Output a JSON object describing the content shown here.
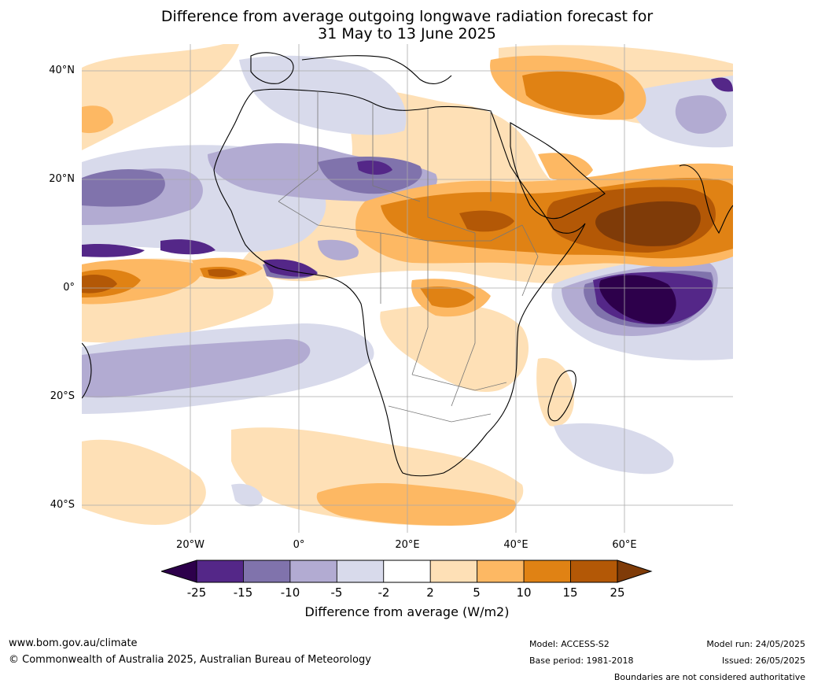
{
  "title_line1": "Difference from average outgoing longwave radiation forecast for",
  "title_line2": "31 May to 13 June 2025",
  "lat_labels": [
    "40°N",
    "20°N",
    "0°",
    "20°S",
    "40°S"
  ],
  "lon_labels": [
    "20°W",
    "0°",
    "20°E",
    "40°E",
    "60°E"
  ],
  "colorbar": {
    "ticks": [
      "-25",
      "-15",
      "-10",
      "-5",
      "-2",
      "2",
      "5",
      "10",
      "15",
      "25"
    ],
    "label": "Difference from average (W/m2)",
    "colors": [
      "#2d004b",
      "#542788",
      "#8073ac",
      "#b2abd2",
      "#d8daeb",
      "#ffffff",
      "#fee0b6",
      "#fdb863",
      "#e08214",
      "#b35806",
      "#7f3b08"
    ]
  },
  "footer": {
    "website": "www.bom.gov.au/climate",
    "copyright": "© Commonwealth of Australia 2025, Australian Bureau of Meteorology",
    "model": "Model: ACCESS-S2",
    "base_period": "Base period: 1981-2018",
    "model_run": "Model run: 24/05/2025",
    "issued": "Issued: 26/05/2025",
    "boundaries_note": "Boundaries are not considered authoritative"
  }
}
